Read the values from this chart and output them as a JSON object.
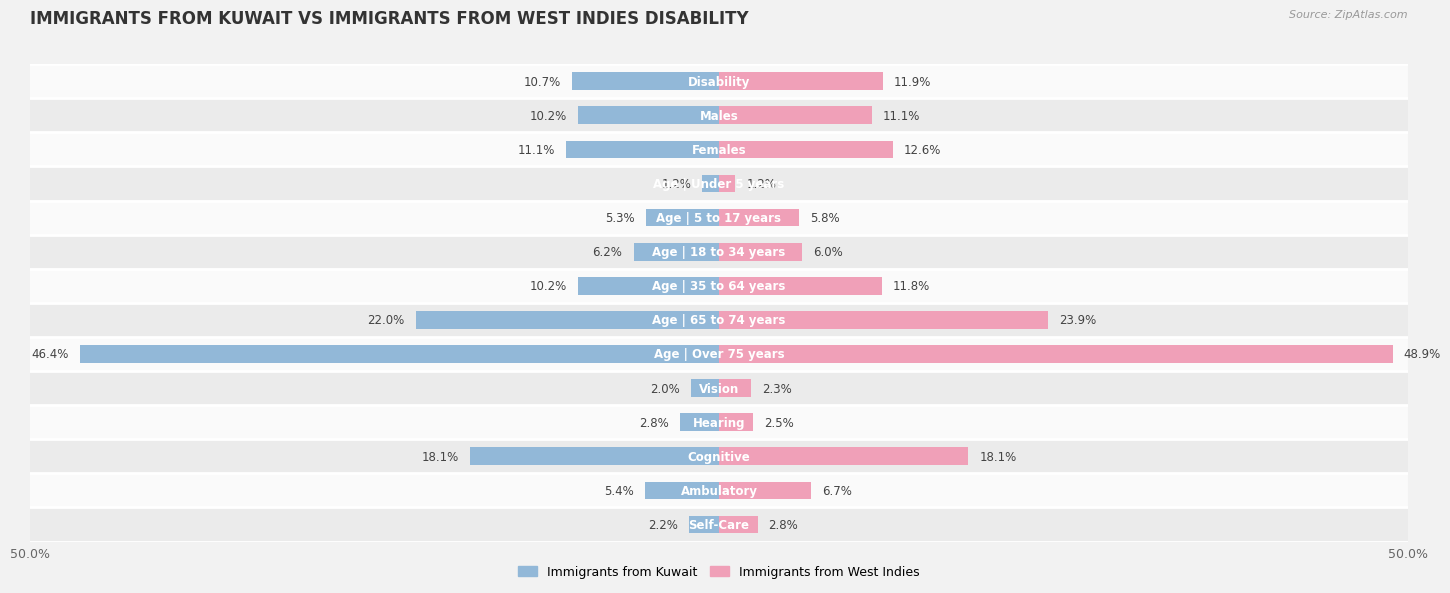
{
  "title": "IMMIGRANTS FROM KUWAIT VS IMMIGRANTS FROM WEST INDIES DISABILITY",
  "source": "Source: ZipAtlas.com",
  "categories": [
    "Disability",
    "Males",
    "Females",
    "Age | Under 5 years",
    "Age | 5 to 17 years",
    "Age | 18 to 34 years",
    "Age | 35 to 64 years",
    "Age | 65 to 74 years",
    "Age | Over 75 years",
    "Vision",
    "Hearing",
    "Cognitive",
    "Ambulatory",
    "Self-Care"
  ],
  "kuwait_values": [
    10.7,
    10.2,
    11.1,
    1.2,
    5.3,
    6.2,
    10.2,
    22.0,
    46.4,
    2.0,
    2.8,
    18.1,
    5.4,
    2.2
  ],
  "west_indies_values": [
    11.9,
    11.1,
    12.6,
    1.2,
    5.8,
    6.0,
    11.8,
    23.9,
    48.9,
    2.3,
    2.5,
    18.1,
    6.7,
    2.8
  ],
  "kuwait_color": "#92b8d8",
  "west_indies_color": "#f0a0b8",
  "bg_color": "#f2f2f2",
  "row_light": "#fafafa",
  "row_dark": "#ebebeb",
  "axis_limit": 50.0,
  "label_fontsize": 8.5,
  "title_fontsize": 12,
  "legend_labels": [
    "Immigrants from Kuwait",
    "Immigrants from West Indies"
  ]
}
